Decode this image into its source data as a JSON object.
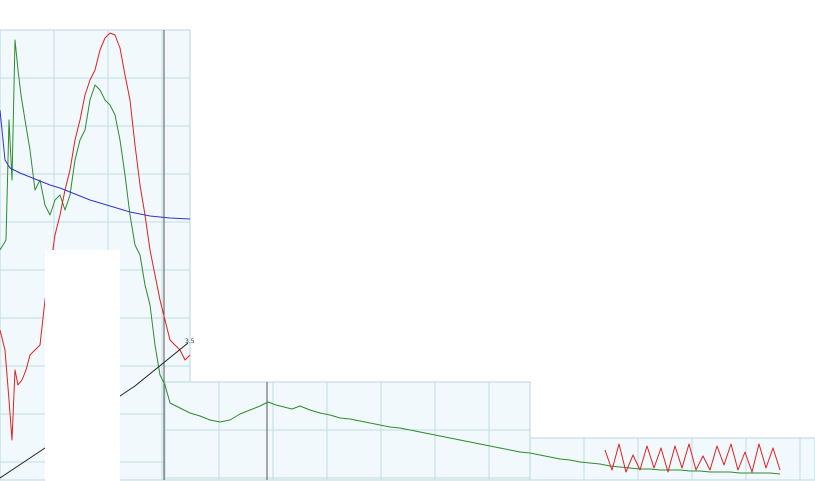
{
  "chart_data": {
    "type": "line",
    "title": "",
    "xlabel": "",
    "ylabel": "",
    "grid": true,
    "annotations": [
      {
        "text": "3.5"
      }
    ],
    "series": [
      {
        "color": "#2e8b2e",
        "points": [
          [
            0,
            250
          ],
          [
            6,
            240
          ],
          [
            9,
            120
          ],
          [
            12,
            180
          ],
          [
            15,
            40
          ],
          [
            18,
            70
          ],
          [
            21,
            95
          ],
          [
            25,
            120
          ],
          [
            30,
            150
          ],
          [
            35,
            190
          ],
          [
            40,
            180
          ],
          [
            45,
            205
          ],
          [
            50,
            215
          ],
          [
            55,
            200
          ],
          [
            60,
            195
          ],
          [
            65,
            210
          ],
          [
            70,
            195
          ],
          [
            75,
            160
          ],
          [
            80,
            140
          ],
          [
            85,
            130
          ],
          [
            90,
            100
          ],
          [
            95,
            85
          ],
          [
            100,
            90
          ],
          [
            105,
            100
          ],
          [
            110,
            105
          ],
          [
            115,
            115
          ],
          [
            120,
            140
          ],
          [
            125,
            175
          ],
          [
            130,
            215
          ],
          [
            135,
            245
          ],
          [
            140,
            255
          ],
          [
            145,
            285
          ],
          [
            150,
            305
          ],
          [
            155,
            345
          ],
          [
            160,
            375
          ],
          [
            165,
            385
          ],
          [
            170,
            403
          ],
          [
            180,
            408
          ],
          [
            190,
            413
          ],
          [
            200,
            416
          ],
          [
            210,
            420
          ],
          [
            220,
            422
          ],
          [
            230,
            420
          ],
          [
            240,
            414
          ],
          [
            250,
            410
          ],
          [
            260,
            406
          ],
          [
            268,
            402
          ],
          [
            276,
            405
          ],
          [
            284,
            407
          ],
          [
            292,
            409
          ],
          [
            300,
            406
          ],
          [
            310,
            410
          ],
          [
            320,
            413
          ],
          [
            330,
            415
          ],
          [
            340,
            418
          ],
          [
            350,
            419
          ],
          [
            360,
            421
          ],
          [
            370,
            423
          ],
          [
            380,
            425
          ],
          [
            390,
            427
          ],
          [
            400,
            428
          ],
          [
            410,
            430
          ],
          [
            420,
            432
          ],
          [
            430,
            434
          ],
          [
            440,
            436
          ],
          [
            450,
            438
          ],
          [
            460,
            440
          ],
          [
            470,
            442
          ],
          [
            480,
            444
          ],
          [
            490,
            446
          ],
          [
            500,
            448
          ],
          [
            510,
            450
          ],
          [
            520,
            452
          ],
          [
            530,
            453
          ],
          [
            540,
            455
          ],
          [
            550,
            457
          ],
          [
            560,
            459
          ],
          [
            570,
            460
          ],
          [
            580,
            462
          ],
          [
            590,
            463
          ],
          [
            600,
            464
          ],
          [
            610,
            466
          ],
          [
            620,
            467
          ],
          [
            630,
            468
          ],
          [
            640,
            469
          ],
          [
            650,
            469
          ],
          [
            660,
            470
          ],
          [
            670,
            470
          ],
          [
            680,
            470
          ],
          [
            690,
            471
          ],
          [
            700,
            471
          ],
          [
            710,
            472
          ],
          [
            720,
            472
          ],
          [
            730,
            472
          ],
          [
            740,
            473
          ],
          [
            750,
            473
          ],
          [
            760,
            473
          ],
          [
            770,
            473
          ],
          [
            780,
            474
          ]
        ]
      },
      {
        "color": "#e02020",
        "points": [
          [
            0,
            330
          ],
          [
            5,
            350
          ],
          [
            9,
            400
          ],
          [
            12,
            440
          ],
          [
            15,
            370
          ],
          [
            18,
            385
          ],
          [
            22,
            380
          ],
          [
            26,
            370
          ],
          [
            30,
            355
          ],
          [
            35,
            350
          ],
          [
            40,
            345
          ],
          [
            45,
            300
          ],
          [
            50,
            270
          ],
          [
            55,
            235
          ],
          [
            60,
            215
          ],
          [
            65,
            190
          ],
          [
            70,
            170
          ],
          [
            75,
            140
          ],
          [
            80,
            120
          ],
          [
            85,
            95
          ],
          [
            90,
            80
          ],
          [
            95,
            70
          ],
          [
            100,
            50
          ],
          [
            105,
            38
          ],
          [
            110,
            33
          ],
          [
            115,
            35
          ],
          [
            120,
            48
          ],
          [
            125,
            75
          ],
          [
            130,
            100
          ],
          [
            135,
            145
          ],
          [
            140,
            185
          ],
          [
            145,
            215
          ],
          [
            150,
            250
          ],
          [
            155,
            275
          ],
          [
            160,
            300
          ],
          [
            165,
            320
          ],
          [
            170,
            340
          ],
          [
            175,
            345
          ],
          [
            180,
            350
          ],
          [
            185,
            360
          ],
          [
            190,
            355
          ]
        ]
      },
      {
        "color": "#e02020",
        "points": [
          [
            605,
            450
          ],
          [
            612,
            470
          ],
          [
            619,
            444
          ],
          [
            626,
            472
          ],
          [
            633,
            455
          ],
          [
            640,
            470
          ],
          [
            647,
            446
          ],
          [
            654,
            468
          ],
          [
            661,
            448
          ],
          [
            668,
            472
          ],
          [
            675,
            446
          ],
          [
            682,
            468
          ],
          [
            689,
            444
          ],
          [
            696,
            470
          ],
          [
            703,
            456
          ],
          [
            710,
            470
          ],
          [
            717,
            446
          ],
          [
            724,
            465
          ],
          [
            731,
            444
          ],
          [
            738,
            470
          ],
          [
            745,
            452
          ],
          [
            752,
            472
          ],
          [
            759,
            444
          ],
          [
            766,
            468
          ],
          [
            773,
            448
          ],
          [
            780,
            470
          ]
        ]
      },
      {
        "color": "#3333cc",
        "points": [
          [
            0,
            110
          ],
          [
            5,
            160
          ],
          [
            10,
            168
          ],
          [
            20,
            173
          ],
          [
            30,
            177
          ],
          [
            40,
            181
          ],
          [
            50,
            185
          ],
          [
            60,
            188
          ],
          [
            70,
            192
          ],
          [
            80,
            196
          ],
          [
            90,
            200
          ],
          [
            100,
            203
          ],
          [
            110,
            206
          ],
          [
            120,
            209
          ],
          [
            130,
            212
          ],
          [
            140,
            214
          ],
          [
            150,
            216
          ],
          [
            160,
            217
          ],
          [
            170,
            218
          ],
          [
            180,
            218.5
          ],
          [
            190,
            219
          ]
        ]
      },
      {
        "color": "#222222",
        "points": [
          [
            0,
            478
          ],
          [
            45,
            448
          ],
          [
            90,
            416
          ],
          [
            135,
            386
          ],
          [
            188,
            343
          ]
        ]
      }
    ]
  }
}
